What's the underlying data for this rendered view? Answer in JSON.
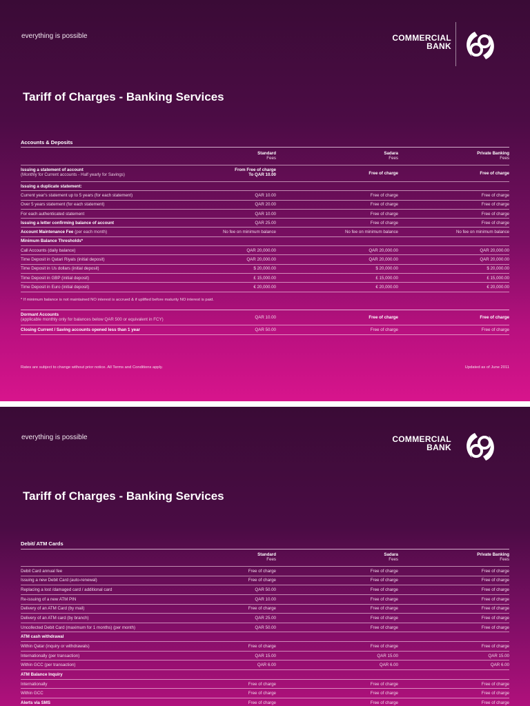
{
  "brand": {
    "tagline": "everything is possible",
    "name_line1": "COMMERCIAL",
    "name_line2": "BANK",
    "accent": "#d8148c",
    "dark": "#3a0b36"
  },
  "pages": [
    {
      "title": "Tariff of Charges - Banking Services",
      "section": "Accounts & Deposits",
      "columns": [
        {
          "name": "Standard",
          "sub": "Fees"
        },
        {
          "name": "Sadara",
          "sub": "Fees"
        },
        {
          "name": "Private Banking",
          "sub": "Fees"
        }
      ],
      "rows": [
        {
          "label": "Issuing a statement of account",
          "note": "(Monthly for Current accounts - Half yearly for Savings)",
          "bold": true,
          "values": [
            "From Free of charge|To QAR 10.00",
            "Free of charge",
            "Free of charge"
          ]
        },
        {
          "label": "Issuing a duplicate statement:",
          "bold": true,
          "values": [
            "",
            "",
            ""
          ]
        },
        {
          "label": "Current year's statement up to 5 years (for each statement)",
          "values": [
            "QAR 10.00",
            "Free of charge",
            "Free of charge"
          ]
        },
        {
          "label": "Over 5 years statement (for each statement)",
          "values": [
            "QAR 20.00",
            "Free of charge",
            "Free of charge"
          ]
        },
        {
          "label": "For each authenticated statement",
          "values": [
            "QAR 10.00",
            "Free of charge",
            "Free of charge"
          ]
        },
        {
          "label": "Issuing a letter confirming balance of account",
          "bold": true,
          "values": [
            "QAR 25.00",
            "Free of charge",
            "Free of charge"
          ]
        },
        {
          "label": "Account Maintenance Fee",
          "suffix": " (per each month)",
          "bold": true,
          "values": [
            "No fee on minimum balance",
            "No fee on minimum balance",
            "No fee on minimum balance"
          ]
        },
        {
          "label": "Minimum Balance Thresholds*",
          "bold": true,
          "values": [
            "",
            "",
            ""
          ]
        },
        {
          "label": "Call Accounts (daily balance)",
          "values": [
            "QAR 20,000.00",
            "QAR 20,000.00",
            "QAR 20,000.00"
          ]
        },
        {
          "label": "Time Deposit in Qatari Riyals (initial deposit)",
          "values": [
            "QAR 20,000.00",
            "QAR 20,000.00",
            "QAR 20,000.00"
          ]
        },
        {
          "label": "Time Deposit in Us dollars (initial deposit)",
          "values": [
            "$ 20,000.00",
            "$ 20,000.00",
            "$ 20,000.00"
          ]
        },
        {
          "label": "Time Deposit in GBP (initial deposit)",
          "values": [
            "£ 15,000.00",
            "£ 15,000.00",
            "£ 15,000.00"
          ]
        },
        {
          "label": "Time Deposit in Euro (initial deposit)",
          "values": [
            "€ 20,000.00",
            "€ 20,000.00",
            "€ 20,000.00"
          ]
        }
      ],
      "footnote": "* If minimum balance is not maintained NO interest is accrued & if uplifted before maturity NO interest is paid.",
      "rows2": [
        {
          "label": "Dormant Accounts",
          "note": "(applicable monthly only for balances below QAR 500 or equivalent in FCY)",
          "bold": true,
          "values": [
            "QAR 10.00",
            "Free of charge",
            "Free of charge"
          ]
        },
        {
          "label": "Closing Current / Saving accounts opened less than 1 year",
          "bold": true,
          "values": [
            "QAR 50.00",
            "Free of charge",
            "Free of charge"
          ]
        }
      ],
      "footer_left": "Rates are subject to change without prior notice. All Terms and Conditions apply.",
      "footer_right": "Updated as of June 2011"
    },
    {
      "title": "Tariff of Charges - Banking Services",
      "section": "Debit/ ATM Cards",
      "columns": [
        {
          "name": "Standard",
          "sub": "Fees"
        },
        {
          "name": "Sadara",
          "sub": "Fees"
        },
        {
          "name": "Private Banking",
          "sub": "Fees"
        }
      ],
      "rows": [
        {
          "label": "Debit Card annual fee",
          "values": [
            "Free of charge",
            "Free of charge",
            "Free of charge"
          ]
        },
        {
          "label": "Issuing a new Debit Card (auto-renewal)",
          "values": [
            "Free of charge",
            "Free of charge",
            "Free of charge"
          ]
        },
        {
          "label": "Replacing a lost /damaged card / additional card",
          "values": [
            "QAR 50.00",
            "Free of charge",
            "Free of charge"
          ]
        },
        {
          "label": "Re-issuing of a new ATM PIN",
          "values": [
            "QAR 10.00",
            "Free of charge",
            "Free of charge"
          ]
        },
        {
          "label": "Delivery of an ATM Card (by mail)",
          "values": [
            "Free of charge",
            "Free of charge",
            "Free of charge"
          ]
        },
        {
          "label": "Delivery of an ATM card (by branch)",
          "values": [
            "QAR 25.00",
            "Free of charge",
            "Free of charge"
          ]
        },
        {
          "label": "Uncollected Debit Card (maximum for 1 months) (per month)",
          "values": [
            "QAR 50.00",
            "Free of charge",
            "Free of charge"
          ]
        },
        {
          "label": "ATM cash withdrawal",
          "bold": true,
          "values": [
            "",
            "",
            ""
          ]
        },
        {
          "label": "Within Qatar  (inquiry or withdrawals)",
          "values": [
            "Free of charge",
            "Free of charge",
            "Free of charge"
          ]
        },
        {
          "label": " Internationally (per transaction)",
          "values": [
            "QAR 15.00",
            "QAR 15.00",
            "QAR 15.00"
          ]
        },
        {
          "label": "Within GCC (per transaction)",
          "values": [
            "QAR 6.00",
            "QAR 6.00",
            "QAR 6.00"
          ]
        },
        {
          "label": "ATM  Balance Inquiry",
          "bold": true,
          "values": [
            "",
            "",
            ""
          ]
        },
        {
          "label": "Internationally",
          "values": [
            "Free of charge",
            "Free of charge",
            "Free of charge"
          ]
        },
        {
          "label": "Within GCC",
          "values": [
            "Free of charge",
            "Free of charge",
            "Free of charge"
          ]
        },
        {
          "label": "Alerts via SMS",
          "bold": true,
          "values": [
            "Free of charge",
            "Free of charge",
            "Free of charge"
          ]
        }
      ]
    }
  ]
}
